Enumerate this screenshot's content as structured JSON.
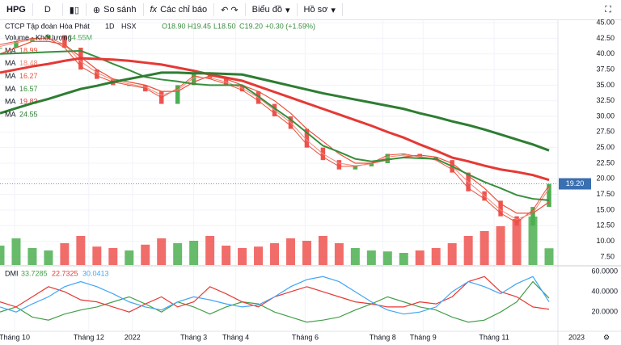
{
  "toolbar": {
    "symbol": "HPG",
    "interval": "D",
    "buttons": [
      "So sánh",
      "Các chỉ báo",
      "Biểu đồ",
      "Hồ sơ"
    ]
  },
  "chart_data": {
    "type": "candlestick",
    "title": "CTCP Tập đoàn Hòa Phát",
    "interval": "1D",
    "exchange": "HSX",
    "ohlc": [
      "O18.90",
      "H19.45",
      "L18.50",
      "C19.20",
      "+0.30 (+1.59%)"
    ],
    "up_color": "#4caf50",
    "down_color": "#ef5350",
    "grid": true,
    "x": [
      0,
      1,
      2,
      3,
      4,
      5,
      6,
      7,
      8,
      9,
      10,
      11,
      12,
      13,
      14,
      15,
      16,
      17,
      18,
      19,
      20,
      21,
      22,
      23,
      24,
      25,
      26,
      27,
      28,
      29,
      30,
      31,
      32,
      33,
      34
    ],
    "xlim": [
      0,
      34.2
    ],
    "xticks": [
      {
        "value": 0.9,
        "label": "Tháng 10"
      },
      {
        "value": 5.5,
        "label": "Tháng 12"
      },
      {
        "value": 8.2,
        "label": "2022"
      },
      {
        "value": 12,
        "label": "Tháng 3"
      },
      {
        "value": 14.6,
        "label": "Tháng 4"
      },
      {
        "value": 18.9,
        "label": "Tháng 6"
      },
      {
        "value": 23.7,
        "label": "Tháng 8"
      },
      {
        "value": 26.2,
        "label": "Tháng 9"
      },
      {
        "value": 30.6,
        "label": "Tháng 11"
      },
      {
        "value": 35.7,
        "label": "2023"
      }
    ],
    "close": [
      41,
      42,
      42.5,
      43,
      41,
      37.5,
      36,
      35,
      35,
      34,
      32,
      35,
      37,
      36,
      35,
      34,
      32,
      30,
      28,
      25,
      23,
      21.5,
      22,
      22.5,
      24,
      24,
      23.5,
      23,
      21,
      18,
      16.5,
      14,
      12.5,
      15.5,
      19.2
    ],
    "last_price": {
      "value": 19.2,
      "label": "19.20"
    },
    "ylim": [
      6.2,
      45.4
    ],
    "yticks": [
      {
        "value": 45,
        "label": "45.00"
      },
      {
        "value": 42.5,
        "label": "42.50"
      },
      {
        "value": 40,
        "label": "40.00"
      },
      {
        "value": 37.5,
        "label": "37.50"
      },
      {
        "value": 35,
        "label": "35.00"
      },
      {
        "value": 32.5,
        "label": "32.50"
      },
      {
        "value": 30,
        "label": "30.00"
      },
      {
        "value": 27.5,
        "label": "27.50"
      },
      {
        "value": 25,
        "label": "25.00"
      },
      {
        "value": 22.5,
        "label": "22.50"
      },
      {
        "value": 20,
        "label": "20.00"
      },
      {
        "value": 17.5,
        "label": "17.50"
      },
      {
        "value": 15,
        "label": "15.00"
      },
      {
        "value": 12.5,
        "label": "12.50"
      },
      {
        "value": 10,
        "label": "10.00"
      },
      {
        "value": 7.5,
        "label": "7.50"
      }
    ],
    "volume": {
      "name": "Volume - Khối lượng",
      "value_label": "34.55M",
      "ylim": [
        0,
        120
      ],
      "values": [
        40,
        55,
        35,
        30,
        45,
        60,
        38,
        35,
        30,
        42,
        55,
        45,
        50,
        60,
        40,
        35,
        38,
        45,
        55,
        50,
        60,
        45,
        35,
        30,
        28,
        25,
        30,
        35,
        45,
        60,
        70,
        80,
        95,
        100,
        34.55
      ]
    },
    "ma": [
      {
        "name": "MA",
        "color": "#e8503a",
        "width": 1,
        "values": [
          41.5,
          42,
          42.5,
          42.5,
          41,
          38,
          36.5,
          35.5,
          35,
          34.5,
          33,
          34.5,
          36.5,
          36,
          35.2,
          34.2,
          32.5,
          30.5,
          28.5,
          25.5,
          23.5,
          22,
          22,
          22.5,
          23.8,
          24,
          23.5,
          23,
          21.5,
          18.5,
          16.8,
          14.5,
          13,
          15,
          18.99
        ]
      },
      {
        "name": "MA",
        "color": "#f08a7a",
        "width": 1,
        "values": [
          41.2,
          41.8,
          42.3,
          42.6,
          41.5,
          38.8,
          37,
          35.8,
          35.2,
          34.7,
          33.4,
          34.2,
          36.2,
          36.2,
          35.5,
          34.5,
          33,
          31,
          29,
          26.2,
          24,
          22.5,
          22.1,
          22.4,
          23.5,
          23.8,
          23.6,
          23.2,
          22,
          19.5,
          17.3,
          15,
          13.5,
          14.5,
          18.48
        ]
      },
      {
        "name": "MA",
        "color": "#e8503a",
        "width": 1.2,
        "values": [
          40,
          41,
          42,
          42,
          41.5,
          39.5,
          37.5,
          36,
          35.5,
          35,
          34,
          34,
          35.5,
          36.5,
          36,
          35,
          34,
          32.5,
          30.5,
          28,
          26,
          24,
          22.5,
          22.5,
          23,
          23.5,
          23.8,
          23.5,
          22.5,
          20.5,
          18.5,
          16,
          14.5,
          14.5,
          16.27
        ]
      },
      {
        "name": "MA",
        "color": "#388e3c",
        "width": 2,
        "values": [
          40,
          40.1,
          40.2,
          40.3,
          40.4,
          40.5,
          39.5,
          38.4,
          37.4,
          36.3,
          35.9,
          35.6,
          35.2,
          35,
          35,
          35,
          33.2,
          31.3,
          29.5,
          27.4,
          25.3,
          24.3,
          23.2,
          22.8,
          23.1,
          23.4,
          23.3,
          23.2,
          22,
          20.7,
          19.5,
          18.5,
          17.4,
          16.8,
          16.57
        ]
      },
      {
        "name": "MA",
        "color": "#e53935",
        "width": 3,
        "values": [
          37,
          37.5,
          38,
          38.4,
          38.9,
          39.3,
          39.2,
          39.1,
          38.9,
          38.6,
          38.3,
          37.8,
          37.3,
          36.7,
          36.2,
          35.7,
          34.8,
          33.9,
          33,
          32.1,
          31.2,
          30.3,
          29.4,
          28.5,
          27.5,
          26.6,
          25.5,
          24.5,
          23.4,
          22.8,
          22.1,
          21.5,
          21.1,
          20.6,
          19.83
        ]
      },
      {
        "name": "MA",
        "color": "#2e7d32",
        "width": 3,
        "values": [
          30.5,
          31.3,
          32.1,
          32.8,
          33.6,
          34.4,
          34.9,
          35.5,
          36,
          36.5,
          37,
          37,
          36.9,
          36.9,
          36.8,
          36.7,
          36.1,
          35.5,
          34.9,
          34.3,
          33.7,
          33.2,
          32.7,
          32.2,
          31.7,
          31.2,
          30.5,
          29.9,
          29.2,
          28.6,
          27.9,
          27.1,
          26.3,
          25.5,
          24.55
        ]
      }
    ],
    "dmi": {
      "name": "DMI",
      "ylim": [
        1,
        64
      ],
      "yticks": [
        {
          "value": 60,
          "label": "60.0000"
        },
        {
          "value": 40,
          "label": "40.0000"
        },
        {
          "value": 20,
          "label": "20.0000"
        }
      ],
      "series": [
        {
          "color": "#43a047",
          "values": [
            20,
            25,
            15,
            12,
            18,
            22,
            25,
            30,
            35,
            28,
            20,
            30,
            25,
            18,
            25,
            30,
            28,
            20,
            15,
            10,
            12,
            15,
            22,
            28,
            35,
            30,
            25,
            22,
            15,
            10,
            12,
            20,
            30,
            50,
            33.7285
          ]
        },
        {
          "color": "#e53935",
          "values": [
            30,
            25,
            35,
            45,
            40,
            32,
            30,
            25,
            20,
            28,
            35,
            25,
            30,
            45,
            38,
            30,
            25,
            35,
            40,
            45,
            40,
            35,
            30,
            28,
            25,
            25,
            30,
            28,
            35,
            50,
            55,
            40,
            35,
            25,
            22.7325
          ]
        },
        {
          "color": "#42a5f5",
          "values": [
            25,
            20,
            28,
            35,
            45,
            50,
            45,
            38,
            30,
            25,
            22,
            30,
            35,
            32,
            28,
            25,
            27,
            35,
            45,
            52,
            55,
            50,
            40,
            30,
            22,
            18,
            20,
            25,
            40,
            50,
            45,
            38,
            48,
            55,
            30.0413
          ]
        }
      ]
    }
  }
}
